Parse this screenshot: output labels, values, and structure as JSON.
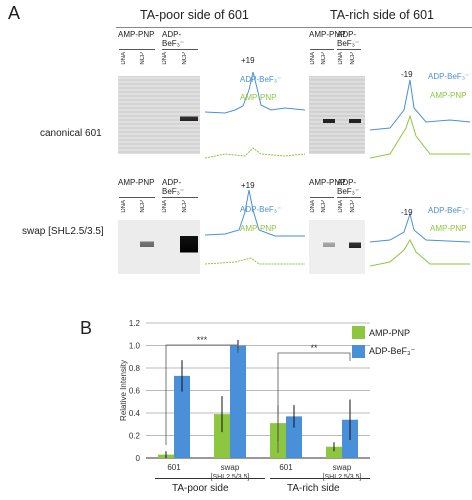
{
  "panel_a": {
    "letter": "A",
    "col_titles": [
      "TA-poor side of 601",
      "TA-rich side of 601"
    ],
    "row_labels": [
      "canonical 601",
      "swap [SHL2.5/3.5]"
    ],
    "nucleotide_headers": {
      "amp": "AMP-PNP",
      "adp": "ADP-BeF₃⁻"
    },
    "lane_labels": [
      "DNA",
      "NCP",
      "DNA",
      "NCP"
    ],
    "trace_legend": {
      "adp": "ADP-BeF₃⁻",
      "amp": "AMP-PNP"
    },
    "peak_labels": {
      "poor": "+19",
      "rich": "-19"
    },
    "colors": {
      "adp": "#4a90d9",
      "amp": "#8dc63f"
    }
  },
  "panel_b": {
    "letter": "B",
    "legend": [
      {
        "label": "AMP-PNP",
        "color": "#8dc63f"
      },
      {
        "label": "ADP-BeF₃⁻",
        "color": "#4a90d9"
      }
    ],
    "group_labels": [
      "TA-poor side",
      "TA-rich side"
    ],
    "significance": [
      "***",
      "**"
    ],
    "x_labels_line1": [
      "601",
      "swap",
      "601",
      "swap"
    ],
    "x_labels_line2": [
      "",
      "[SHL2.5/3.5]",
      "",
      "[SHL2.5/3.5]"
    ]
  },
  "chart_data": {
    "type": "bar",
    "ylabel": "Relative Intensity",
    "ylim": [
      0,
      1.2
    ],
    "yticks": [
      "0",
      "0.2",
      "0.4",
      "0.6",
      "0.8",
      "1.0",
      "1.2"
    ],
    "categories": [
      "601",
      "swap [SHL2.5/3.5]",
      "601",
      "swap [SHL2.5/3.5]"
    ],
    "series": [
      {
        "name": "AMP-PNP",
        "color": "#8dc63f",
        "values": [
          0.03,
          0.39,
          0.31,
          0.1
        ],
        "err": [
          0.03,
          0.16,
          0.16,
          0.04
        ]
      },
      {
        "name": "ADP-BeF₃⁻",
        "color": "#4a90d9",
        "values": [
          0.73,
          1.0,
          0.37,
          0.34
        ],
        "err": [
          0.14,
          0.05,
          0.1,
          0.18
        ]
      }
    ],
    "grid": true
  }
}
